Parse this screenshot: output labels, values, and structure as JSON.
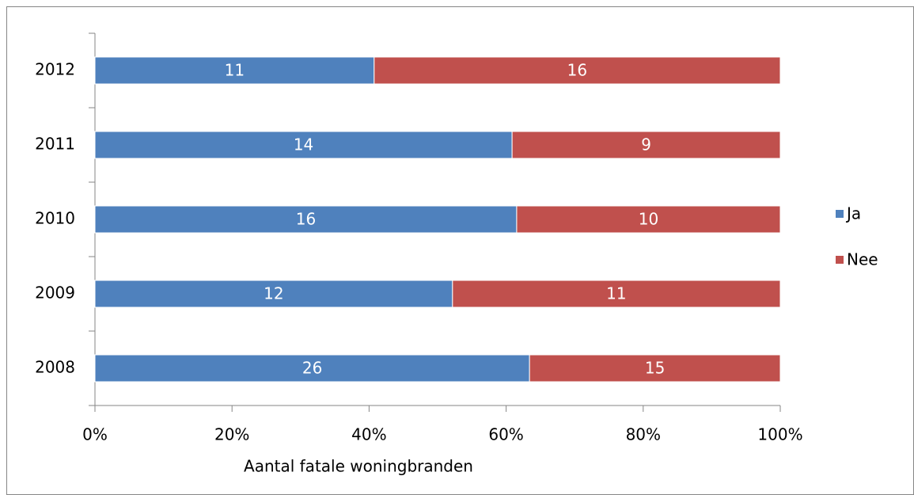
{
  "chart_data": {
    "type": "bar",
    "orientation": "horizontal",
    "stacking": "percent",
    "x_label": "Aantal fatale woningbranden",
    "categories": [
      "2008",
      "2009",
      "2010",
      "2011",
      "2012"
    ],
    "series": [
      {
        "name": "Ja",
        "color": "#4f81bd",
        "values": [
          26,
          12,
          16,
          14,
          11
        ]
      },
      {
        "name": "Nee",
        "color": "#c0504d",
        "values": [
          15,
          11,
          10,
          9,
          16
        ]
      }
    ],
    "xlim": [
      0,
      100
    ],
    "xticks": [
      {
        "value": 0,
        "label": "0%"
      },
      {
        "value": 20,
        "label": "20%"
      },
      {
        "value": 40,
        "label": "40%"
      },
      {
        "value": 60,
        "label": "60%"
      },
      {
        "value": 80,
        "label": "80%"
      },
      {
        "value": 100,
        "label": "100%"
      }
    ],
    "legend": "right"
  }
}
